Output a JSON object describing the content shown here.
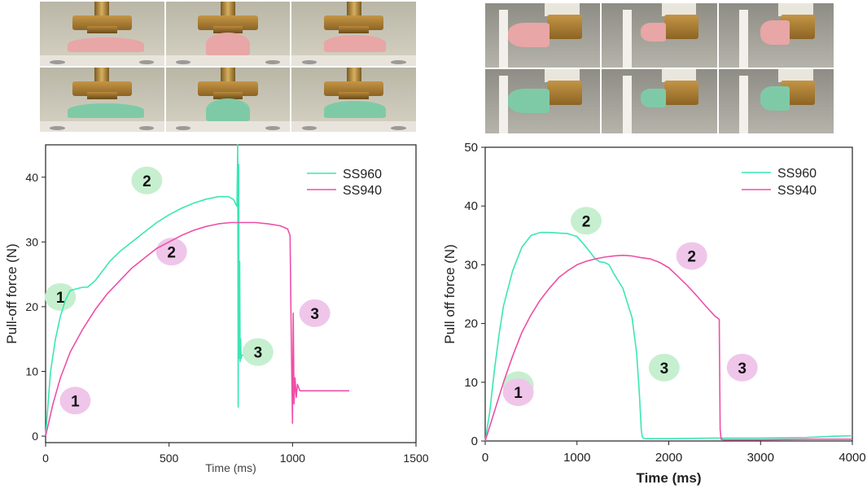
{
  "photos": {
    "left": {
      "rows": [
        {
          "cup_color": "#e8a6a6",
          "states": [
            "flat",
            "mid",
            "lifted"
          ]
        },
        {
          "cup_color": "#7fcaa6",
          "states": [
            "flat",
            "mid",
            "lifted"
          ]
        }
      ],
      "background": "#b9b6a6"
    },
    "right": {
      "rows": [
        {
          "cup_color": "#e8a6a6",
          "states": [
            "attached",
            "detaching",
            "released"
          ]
        },
        {
          "cup_color": "#7fcaa6",
          "states": [
            "attached",
            "detaching",
            "released"
          ]
        }
      ],
      "background": "#8e8d85"
    }
  },
  "chart_data": [
    {
      "type": "line",
      "xlabel": "Time (ms)",
      "ylabel": "Pull-off force (N)",
      "xlim": [
        0,
        1500
      ],
      "ylim": [
        -1,
        45
      ],
      "xticks": [
        0,
        500,
        1000,
        1500
      ],
      "yticks": [
        0,
        10,
        20,
        30,
        40
      ],
      "legend_position": "top-right",
      "series": [
        {
          "name": "SS960",
          "color": "#3ce6b4",
          "x": [
            0,
            20,
            40,
            60,
            80,
            100,
            130,
            150,
            170,
            200,
            230,
            260,
            300,
            350,
            400,
            450,
            500,
            550,
            600,
            650,
            700,
            740,
            760,
            775,
            778,
            780,
            782,
            784,
            786,
            788,
            790,
            792,
            795,
            800
          ],
          "y": [
            0,
            10,
            15,
            18.5,
            21,
            22.5,
            22.8,
            23,
            23,
            24,
            25.5,
            27,
            28.5,
            30,
            31.5,
            33,
            34.2,
            35.2,
            36,
            36.6,
            37,
            37,
            36.6,
            35.5,
            45,
            4.5,
            42,
            12,
            27,
            11.5,
            15,
            12,
            12.5,
            12.5
          ]
        },
        {
          "name": "SS940",
          "color": "#ee4fa8",
          "x": [
            0,
            30,
            60,
            100,
            150,
            200,
            250,
            300,
            350,
            400,
            450,
            500,
            550,
            600,
            650,
            700,
            750,
            800,
            850,
            900,
            950,
            980,
            990,
            995,
            1000,
            1003,
            1006,
            1010,
            1015,
            1020,
            1030,
            1050,
            1100,
            1150,
            1200,
            1230
          ],
          "y": [
            0,
            5,
            9,
            13,
            16.5,
            19.5,
            22,
            24,
            26,
            27.5,
            29,
            30,
            31,
            31.8,
            32.4,
            32.8,
            33,
            33,
            33,
            32.8,
            32.5,
            32,
            31,
            15,
            2,
            19,
            5,
            9,
            6,
            8,
            7,
            7,
            7,
            7,
            7,
            7
          ]
        }
      ],
      "annotations": [
        {
          "label": "1",
          "series": "SS960",
          "x": 60,
          "y": 21.5
        },
        {
          "label": "2",
          "series": "SS960",
          "x": 410,
          "y": 39.5
        },
        {
          "label": "3",
          "series": "SS960",
          "x": 860,
          "y": 13
        },
        {
          "label": "1",
          "series": "SS940",
          "x": 120,
          "y": 5.5
        },
        {
          "label": "2",
          "series": "SS940",
          "x": 510,
          "y": 28.5
        },
        {
          "label": "3",
          "series": "SS940",
          "x": 1090,
          "y": 19
        }
      ]
    },
    {
      "type": "line",
      "xlabel": "Time (ms)",
      "ylabel": "Pull off force (N)",
      "xlim": [
        0,
        4000
      ],
      "ylim": [
        0,
        50
      ],
      "xticks": [
        0,
        1000,
        2000,
        3000,
        4000
      ],
      "yticks": [
        0,
        10,
        20,
        30,
        40,
        50
      ],
      "legend_position": "top-right",
      "series": [
        {
          "name": "SS960",
          "color": "#3ce6b4",
          "x": [
            0,
            50,
            100,
            150,
            200,
            300,
            400,
            500,
            600,
            700,
            800,
            900,
            1000,
            1100,
            1200,
            1250,
            1300,
            1350,
            1400,
            1500,
            1600,
            1650,
            1680,
            1700,
            1710,
            1720,
            1750,
            2000,
            2500,
            3000,
            3500,
            3800,
            4000
          ],
          "y": [
            0,
            5,
            12,
            18,
            23,
            29,
            33,
            35,
            35.5,
            35.5,
            35.4,
            35.3,
            34.8,
            33,
            31,
            30.5,
            30.4,
            30,
            28.5,
            26,
            21,
            15,
            8,
            2,
            0.8,
            0.5,
            0.4,
            0.4,
            0.5,
            0.5,
            0.6,
            0.8,
            0.9
          ]
        },
        {
          "name": "SS940",
          "color": "#ee4fa8",
          "x": [
            0,
            100,
            200,
            300,
            400,
            500,
            600,
            700,
            800,
            900,
            1000,
            1100,
            1200,
            1300,
            1400,
            1500,
            1600,
            1700,
            1800,
            1900,
            2000,
            2100,
            2200,
            2300,
            2400,
            2500,
            2550,
            2560,
            2570,
            2600,
            3000,
            3500,
            4000
          ],
          "y": [
            0,
            5,
            10,
            14.5,
            18.5,
            21.5,
            24,
            26,
            27.8,
            29,
            30,
            30.6,
            31,
            31.3,
            31.5,
            31.6,
            31.5,
            31.2,
            31,
            30.4,
            29.5,
            28,
            26.5,
            24.8,
            23,
            21.3,
            20.7,
            2,
            0.3,
            0.2,
            0.2,
            0.3,
            0.3
          ]
        }
      ],
      "annotations": [
        {
          "label": "1",
          "series": "SS960",
          "x": 360,
          "y": 9.5
        },
        {
          "label": "1",
          "series": "SS940",
          "x": 360,
          "y": 8.3
        },
        {
          "label": "2",
          "series": "SS960",
          "x": 1100,
          "y": 37.5
        },
        {
          "label": "2",
          "series": "SS940",
          "x": 2250,
          "y": 31.5
        },
        {
          "label": "3",
          "series": "SS960",
          "x": 1950,
          "y": 12.5
        },
        {
          "label": "3",
          "series": "SS940",
          "x": 2800,
          "y": 12.5
        }
      ]
    }
  ]
}
